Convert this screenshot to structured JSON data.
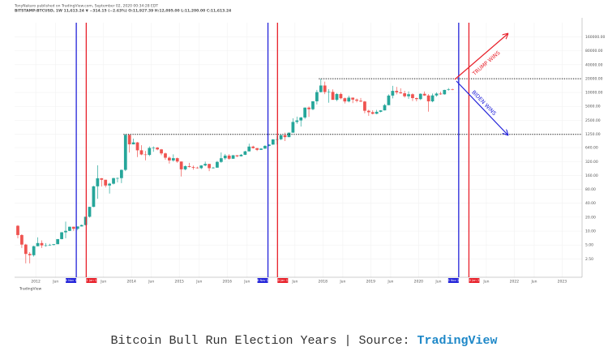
{
  "chart_data": {
    "type": "candlestick",
    "header": [
      "TonyNakaro published on TradingView.com, September 02, 2020 00:34:28 EDT",
      "BITSTAMP:BTCUSD, 1W 11,613.24 ▼ −314.15 (−2.63%) O:11,927.39 H:12,095.00 L:11,200.00 C:11,613.24"
    ],
    "caption": "Bitcoin Bull Run Election Years | Source: ",
    "caption_source": "TradingView",
    "brand": "TradingView",
    "log_scale": true,
    "grid": true,
    "up_color": "#26a69a",
    "down_color": "#ef5350",
    "xlim": [
      "2011-07-22",
      "2023-06-01"
    ],
    "ylim": [
      1,
      324000
    ],
    "xticks": [
      {
        "value": "2012-01",
        "label": "2012"
      },
      {
        "value": "2012-06",
        "label": "Jun"
      },
      {
        "value": "2013-06",
        "label": "Jun"
      },
      {
        "value": "2014-01",
        "label": "2014"
      },
      {
        "value": "2014-06",
        "label": "Jun"
      },
      {
        "value": "2015-01",
        "label": "2015"
      },
      {
        "value": "2015-06",
        "label": "Jun"
      },
      {
        "value": "2016-01",
        "label": "2016"
      },
      {
        "value": "2016-06",
        "label": "Jun"
      },
      {
        "value": "2017-06",
        "label": "Jun"
      },
      {
        "value": "2018-01",
        "label": "2018"
      },
      {
        "value": "2018-06",
        "label": "Jun"
      },
      {
        "value": "2019-01",
        "label": "2019"
      },
      {
        "value": "2019-06",
        "label": "Jun"
      },
      {
        "value": "2020-01",
        "label": "2020"
      },
      {
        "value": "2020-06",
        "label": "Jun"
      },
      {
        "value": "2021-06",
        "label": "Jun"
      },
      {
        "value": "2022-01",
        "label": "2022"
      },
      {
        "value": "2022-06",
        "label": "Jun"
      },
      {
        "value": "2023-01",
        "label": "2023"
      }
    ],
    "yticks": [
      {
        "value": 2.5,
        "label": "2.50"
      },
      {
        "value": 5,
        "label": "5.00"
      },
      {
        "value": 10,
        "label": "10.00"
      },
      {
        "value": 20,
        "label": "20.00"
      },
      {
        "value": 40,
        "label": "40.00"
      },
      {
        "value": 80,
        "label": "80.00"
      },
      {
        "value": 160,
        "label": "160.00"
      },
      {
        "value": 320,
        "label": "320.00"
      },
      {
        "value": 640,
        "label": "640.00"
      },
      {
        "value": 1250,
        "label": "1250.00"
      },
      {
        "value": 2500,
        "label": "2500.00"
      },
      {
        "value": 5000,
        "label": "5000.00"
      },
      {
        "value": 10000,
        "label": "10000.00"
      },
      {
        "value": 20000,
        "label": "20000.00"
      },
      {
        "value": 40000,
        "label": "40000.00"
      },
      {
        "value": 80000,
        "label": "80000.00"
      },
      {
        "value": 160000,
        "label": "160000.00"
      }
    ],
    "hlines": [
      19800,
      1242
    ],
    "events": [
      {
        "date": "2012-11-06",
        "label": "06 Nov 12",
        "color": "#2323d9"
      },
      {
        "date": "2013-01-21",
        "label": "21 Jan 13",
        "color": "#e8202a"
      },
      {
        "date": "2016-11-08",
        "label": "08 Nov 16",
        "color": "#2323d9"
      },
      {
        "date": "2017-01-20",
        "label": "20 Jan 17",
        "color": "#e8202a"
      },
      {
        "date": "2020-11-03",
        "label": "03 Nov 20",
        "color": "#2323d9"
      },
      {
        "date": "2021-01-20",
        "label": "20 Jan 21",
        "color": "#e8202a"
      }
    ],
    "annotations": [
      {
        "text": "TRUMP WINS",
        "color": "#e8202a"
      },
      {
        "text": "BIDEN WINS",
        "color": "#2323d9"
      }
    ],
    "x": [
      "2011-08",
      "2011-09",
      "2011-10",
      "2011-11",
      "2011-12",
      "2012-01",
      "2012-02",
      "2012-03",
      "2012-04",
      "2012-05",
      "2012-06",
      "2012-07",
      "2012-08",
      "2012-09",
      "2012-10",
      "2012-11",
      "2012-12",
      "2013-01",
      "2013-02",
      "2013-03",
      "2013-04",
      "2013-05",
      "2013-06",
      "2013-07",
      "2013-08",
      "2013-09",
      "2013-10",
      "2013-11",
      "2013-12",
      "2014-01",
      "2014-02",
      "2014-03",
      "2014-04",
      "2014-05",
      "2014-06",
      "2014-07",
      "2014-08",
      "2014-09",
      "2014-10",
      "2014-11",
      "2014-12",
      "2015-01",
      "2015-02",
      "2015-03",
      "2015-04",
      "2015-05",
      "2015-06",
      "2015-07",
      "2015-08",
      "2015-09",
      "2015-10",
      "2015-11",
      "2015-12",
      "2016-01",
      "2016-02",
      "2016-03",
      "2016-04",
      "2016-05",
      "2016-06",
      "2016-07",
      "2016-08",
      "2016-09",
      "2016-10",
      "2016-11",
      "2016-12",
      "2017-01",
      "2017-02",
      "2017-03",
      "2017-04",
      "2017-05",
      "2017-06",
      "2017-07",
      "2017-08",
      "2017-09",
      "2017-10",
      "2017-11",
      "2017-12",
      "2018-01",
      "2018-02",
      "2018-03",
      "2018-04",
      "2018-05",
      "2018-06",
      "2018-07",
      "2018-08",
      "2018-09",
      "2018-10",
      "2018-11",
      "2018-12",
      "2019-01",
      "2019-02",
      "2019-03",
      "2019-04",
      "2019-05",
      "2019-06",
      "2019-07",
      "2019-08",
      "2019-09",
      "2019-10",
      "2019-11",
      "2019-12",
      "2020-01",
      "2020-02",
      "2020-03",
      "2020-04",
      "2020-05",
      "2020-06",
      "2020-07",
      "2020-08",
      "2020-09"
    ],
    "open": [
      13,
      8.2,
      5.1,
      3.2,
      3.0,
      4.7,
      5.5,
      4.9,
      4.9,
      5.0,
      5.2,
      6.7,
      9.4,
      10.1,
      12.4,
      11.2,
      12.6,
      13.5,
      20.4,
      33.4,
      93,
      139,
      129,
      97,
      106,
      140,
      140,
      211,
      1205,
      754,
      830,
      560,
      455,
      445,
      630,
      640,
      586,
      480,
      387,
      338,
      378,
      320,
      217,
      254,
      244,
      236,
      230,
      263,
      284,
      230,
      236,
      314,
      377,
      430,
      368,
      437,
      416,
      448,
      531,
      674,
      624,
      573,
      609,
      698,
      744,
      964,
      970,
      1190,
      1080,
      1350,
      2300,
      2480,
      2875,
      4700,
      4340,
      6450,
      10200,
      14150,
      10230,
      10300,
      6930,
      9240,
      7500,
      6400,
      7730,
      7020,
      6630,
      6370,
      4020,
      3740,
      3460,
      3820,
      4100,
      5320,
      8570,
      10820,
      10080,
      9600,
      8290,
      9150,
      7560,
      7190,
      9350,
      8600,
      6430,
      8630,
      9450,
      9140,
      11350,
      11660
    ],
    "high": [
      13.5,
      8.5,
      5.3,
      3.5,
      4.8,
      7.3,
      6.3,
      5.5,
      5.3,
      5.2,
      6.7,
      9.5,
      16,
      12.5,
      12.5,
      12.5,
      13.8,
      20.4,
      33.4,
      95,
      266,
      140,
      129,
      111,
      142,
      145,
      215,
      1242,
      1240,
      1000,
      850,
      720,
      540,
      680,
      680,
      660,
      600,
      500,
      412,
      458,
      390,
      320,
      263,
      300,
      262,
      247,
      267,
      318,
      284,
      245,
      330,
      503,
      467,
      462,
      443,
      440,
      465,
      548,
      780,
      704,
      625,
      620,
      720,
      760,
      975,
      1150,
      1210,
      1350,
      1360,
      2770,
      3000,
      2950,
      4750,
      4980,
      6450,
      11400,
      19800,
      17200,
      11780,
      11700,
      9750,
      9990,
      7770,
      8500,
      7760,
      7400,
      7600,
      6570,
      4240,
      4110,
      4200,
      4140,
      5640,
      9100,
      13900,
      13200,
      12300,
      10900,
      10540,
      9530,
      7750,
      9580,
      10500,
      9200,
      9470,
      10080,
      10400,
      11450,
      12470,
      12090
    ],
    "low": [
      7,
      4.3,
      2.0,
      2.0,
      2.8,
      4.7,
      4.3,
      4.6,
      4.8,
      4.9,
      5.2,
      6.6,
      7,
      10,
      10.1,
      10.5,
      12.6,
      13.3,
      19.6,
      33,
      50,
      92,
      88,
      65,
      102,
      113,
      109,
      198,
      500,
      750,
      400,
      440,
      340,
      420,
      520,
      560,
      440,
      350,
      289,
      318,
      300,
      152,
      207,
      237,
      214,
      225,
      219,
      253,
      198,
      225,
      235,
      300,
      351,
      350,
      366,
      400,
      412,
      443,
      530,
      611,
      540,
      569,
      605,
      683,
      742,
      750,
      935,
      890,
      1080,
      1340,
      2100,
      1830,
      2670,
      2950,
      4120,
      5500,
      10000,
      9200,
      6000,
      7600,
      6500,
      7100,
      5780,
      6100,
      5880,
      6100,
      6200,
      3550,
      3120,
      3350,
      3390,
      3730,
      4080,
      5300,
      7450,
      9100,
      9400,
      7750,
      7300,
      6520,
      6440,
      6850,
      8450,
      3850,
      6150,
      8120,
      8900,
      8970,
      10950,
      11200
    ],
    "close": [
      8.2,
      5.1,
      3.2,
      3.0,
      4.7,
      5.5,
      4.9,
      4.9,
      5.0,
      5.2,
      6.7,
      9.4,
      10.1,
      12.4,
      11.2,
      12.6,
      13.5,
      20.4,
      33.4,
      93,
      139,
      129,
      97,
      106,
      140,
      140,
      211,
      1205,
      754,
      830,
      560,
      455,
      445,
      630,
      640,
      586,
      480,
      387,
      338,
      378,
      320,
      217,
      254,
      244,
      236,
      230,
      263,
      284,
      230,
      236,
      314,
      377,
      430,
      368,
      437,
      416,
      448,
      531,
      674,
      624,
      573,
      609,
      698,
      744,
      964,
      970,
      1190,
      1080,
      1350,
      2300,
      2480,
      2875,
      4700,
      4340,
      6450,
      10200,
      14150,
      10230,
      10300,
      6930,
      9240,
      7500,
      6400,
      7730,
      7020,
      6630,
      6370,
      4020,
      3740,
      3460,
      3820,
      4100,
      5320,
      8570,
      10820,
      10080,
      9600,
      8290,
      9150,
      7560,
      7190,
      9350,
      8600,
      6430,
      8630,
      9450,
      9140,
      11350,
      11660,
      11450
    ]
  }
}
